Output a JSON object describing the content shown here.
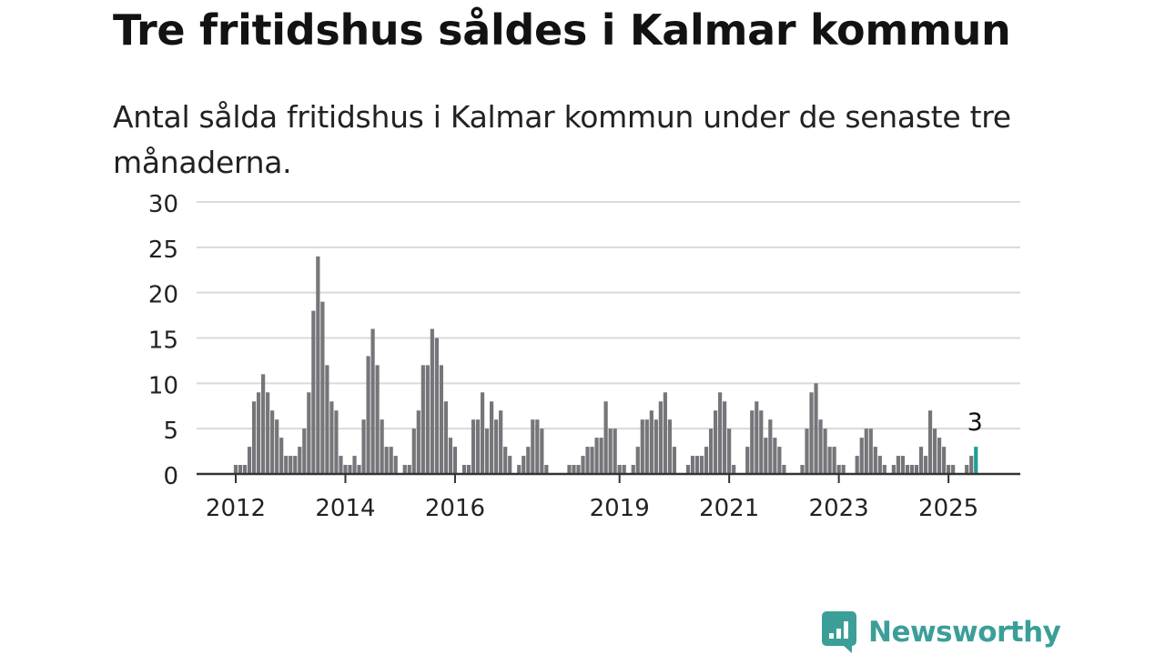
{
  "header": {
    "title": "Tre fritidshus såldes i Kalmar kommun",
    "subtitle": "Antal sålda fritidshus i Kalmar kommun under de senaste tre månaderna."
  },
  "logo": {
    "text": "Newsworthy",
    "icon": "newsworthy-chart-bubble-icon",
    "color": "#3b9f98"
  },
  "colors": {
    "bar": "#76757a",
    "highlight": "#1c9e96",
    "grid": "#d9d9d9",
    "axis": "#333333",
    "text": "#222222"
  },
  "chart_data": {
    "type": "bar",
    "x_start": "2012-01",
    "x_unit": "month",
    "ylim": [
      0,
      30
    ],
    "yticks": [
      0,
      5,
      10,
      15,
      20,
      25,
      30
    ],
    "xticks": [
      {
        "label": "2012",
        "month": "2012-01"
      },
      {
        "label": "2014",
        "month": "2014-01"
      },
      {
        "label": "2016",
        "month": "2016-01"
      },
      {
        "label": "2019",
        "month": "2019-01"
      },
      {
        "label": "2021",
        "month": "2021-01"
      },
      {
        "label": "2023",
        "month": "2023-01"
      },
      {
        "label": "2025",
        "month": "2025-01"
      }
    ],
    "grid": true,
    "values": [
      1,
      1,
      1,
      3,
      8,
      9,
      11,
      9,
      7,
      6,
      4,
      2,
      2,
      2,
      3,
      5,
      9,
      18,
      24,
      19,
      12,
      8,
      7,
      2,
      1,
      1,
      2,
      1,
      6,
      13,
      16,
      12,
      6,
      3,
      3,
      2,
      0,
      1,
      1,
      5,
      7,
      12,
      12,
      16,
      15,
      12,
      8,
      4,
      3,
      0,
      1,
      1,
      6,
      6,
      9,
      5,
      8,
      6,
      7,
      3,
      2,
      0,
      1,
      2,
      3,
      6,
      6,
      5,
      1,
      0,
      0,
      0,
      0,
      1,
      1,
      1,
      2,
      3,
      3,
      4,
      4,
      8,
      5,
      5,
      1,
      1,
      0,
      1,
      3,
      6,
      6,
      7,
      6,
      8,
      9,
      6,
      3,
      0,
      0,
      1,
      2,
      2,
      2,
      3,
      5,
      7,
      9,
      8,
      5,
      1,
      0,
      0,
      3,
      7,
      8,
      7,
      4,
      6,
      4,
      3,
      1,
      0,
      0,
      0,
      1,
      5,
      9,
      10,
      6,
      5,
      3,
      3,
      1,
      1,
      0,
      0,
      2,
      4,
      5,
      5,
      3,
      2,
      1,
      0,
      1,
      2,
      2,
      1,
      1,
      1,
      3,
      2,
      7,
      5,
      4,
      3,
      1,
      1,
      0,
      0,
      1,
      2,
      3
    ],
    "highlight": {
      "month": "2025-07",
      "value": 3,
      "label": "3"
    }
  }
}
